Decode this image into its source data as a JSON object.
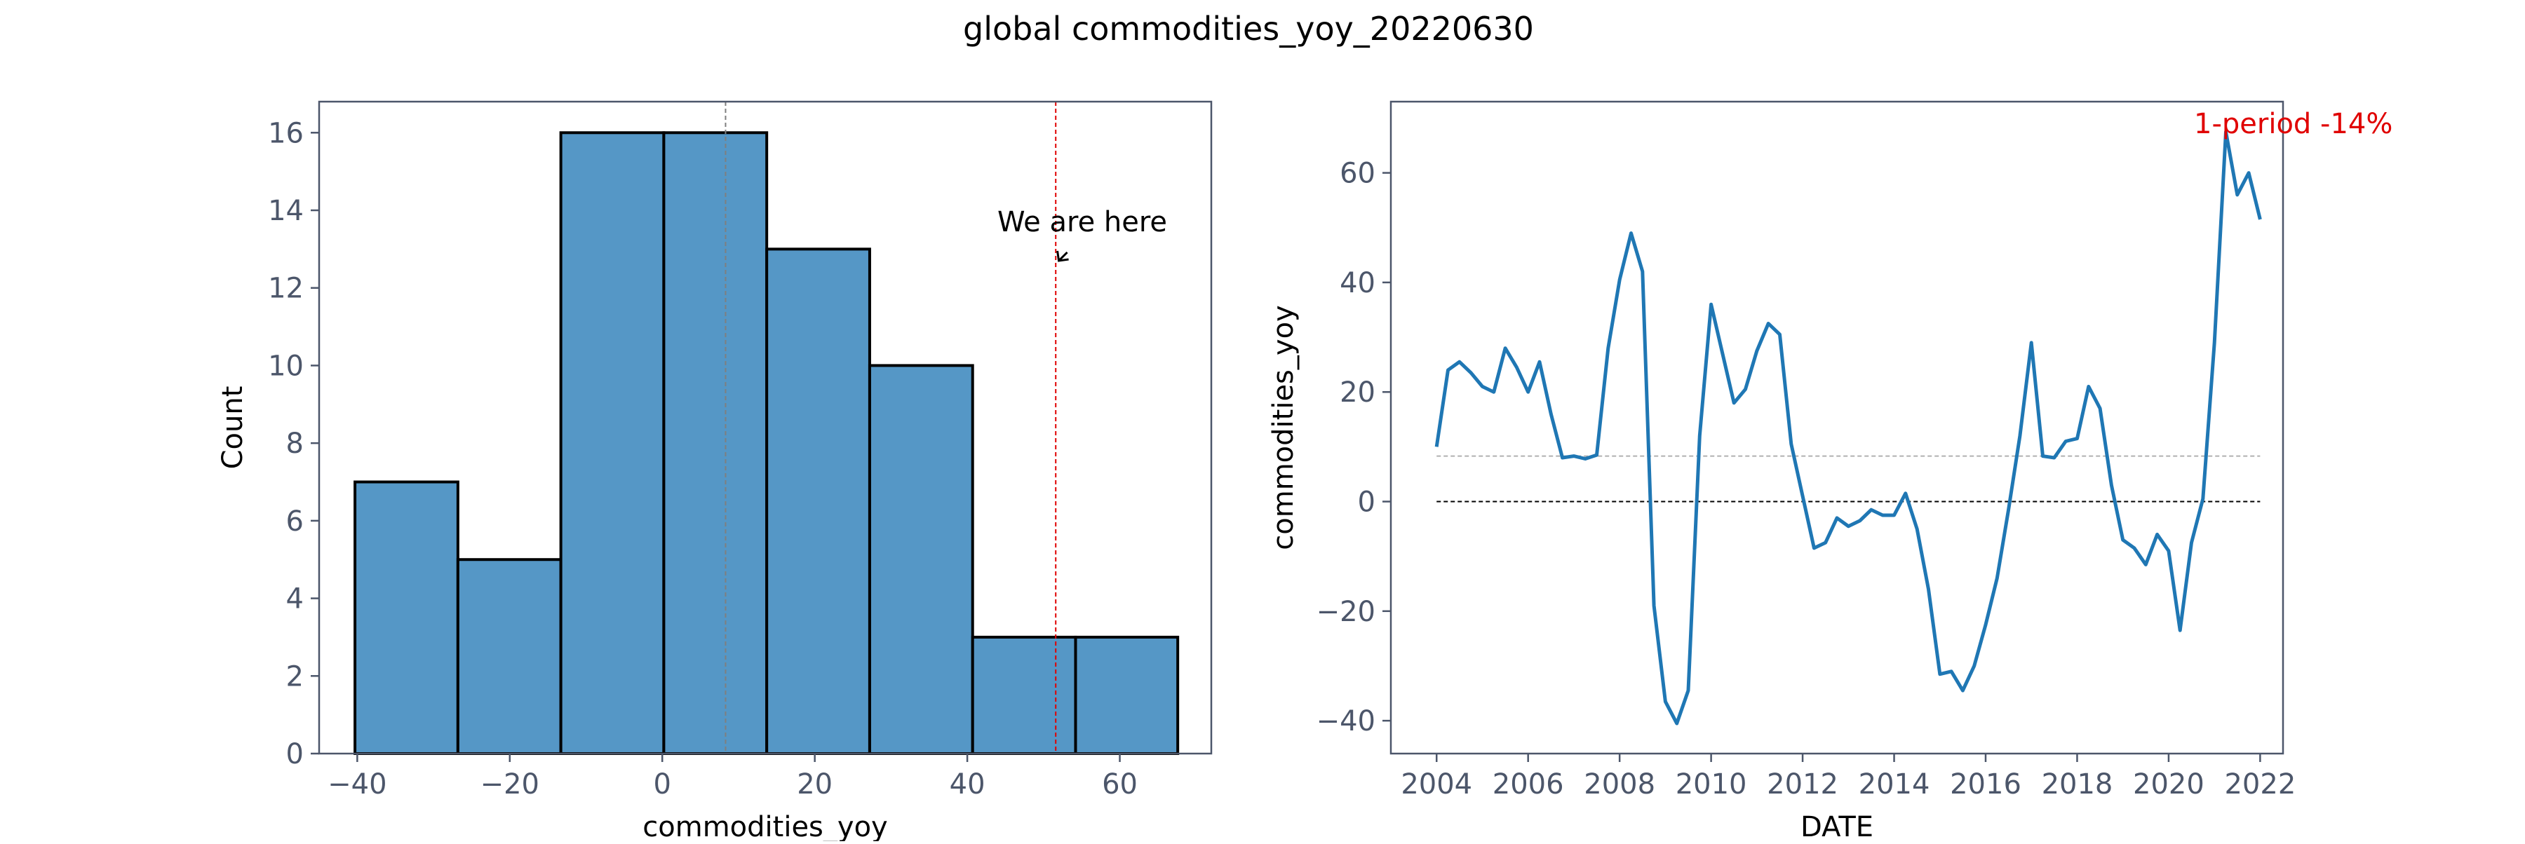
{
  "figure": {
    "title": "global commodities_yoy_20220630"
  },
  "colors": {
    "bar_fill": "#5597c6",
    "line": "#1f77b4",
    "marker": "#d62728",
    "axis": "#4c566a",
    "text": "#000000"
  },
  "chart_data": [
    {
      "type": "bar",
      "subtype": "histogram",
      "xlabel": "commodities_yoy",
      "ylabel": "Count",
      "bins": [
        {
          "start": -40.3,
          "end": -26.8,
          "count": 7
        },
        {
          "start": -26.8,
          "end": -13.3,
          "count": 5
        },
        {
          "start": -13.3,
          "end": 0.2,
          "count": 16
        },
        {
          "start": 0.2,
          "end": 13.7,
          "count": 16
        },
        {
          "start": 13.7,
          "end": 27.2,
          "count": 13
        },
        {
          "start": 27.2,
          "end": 40.7,
          "count": 10
        },
        {
          "start": 40.7,
          "end": 54.2,
          "count": 3
        },
        {
          "start": 54.2,
          "end": 67.6,
          "count": 3
        }
      ],
      "xlim": [
        -45,
        72
      ],
      "ylim": [
        0,
        16.8
      ],
      "xticks": [
        -40,
        -20,
        0,
        20,
        40,
        60
      ],
      "xtick_labels": [
        "−40",
        "−20",
        "0",
        "20",
        "40",
        "60"
      ],
      "yticks": [
        0,
        2,
        4,
        6,
        8,
        10,
        12,
        14,
        16
      ],
      "ytick_labels": [
        "0",
        "2",
        "4",
        "6",
        "8",
        "10",
        "12",
        "14",
        "16"
      ],
      "mean_line": 8.3,
      "current_line": 51.6,
      "annotation": {
        "text": "We are here",
        "x": 52,
        "y": 12.7
      },
      "grid": false
    },
    {
      "type": "line",
      "xlabel": "DATE",
      "ylabel": "commodities_yoy",
      "xlim": [
        2003.0,
        2022.5
      ],
      "ylim": [
        -46,
        73
      ],
      "xticks": [
        2004,
        2006,
        2008,
        2010,
        2012,
        2014,
        2016,
        2018,
        2020,
        2022
      ],
      "xtick_labels": [
        "2004",
        "2006",
        "2008",
        "2010",
        "2012",
        "2014",
        "2016",
        "2018",
        "2020",
        "2022"
      ],
      "yticks": [
        -40,
        -20,
        0,
        20,
        40,
        60
      ],
      "ytick_labels": [
        "−40",
        "−20",
        "0",
        "20",
        "40",
        "60"
      ],
      "mean_line": 8.3,
      "zero_line": 0,
      "annotation": {
        "text": "1-period -14%"
      },
      "grid": false,
      "series": [
        {
          "x": [
            2004.0,
            2004.25,
            2004.5,
            2004.75,
            2005.0,
            2005.25,
            2005.5,
            2005.75,
            2006.0,
            2006.25,
            2006.5,
            2006.75,
            2007.0,
            2007.25,
            2007.5,
            2007.75,
            2008.0,
            2008.25,
            2008.5,
            2008.75,
            2009.0,
            2009.25,
            2009.5,
            2009.75,
            2010.0,
            2010.25,
            2010.5,
            2010.75,
            2011.0,
            2011.25,
            2011.5,
            2011.75,
            2012.0,
            2012.25,
            2012.5,
            2012.75,
            2013.0,
            2013.25,
            2013.5,
            2013.75,
            2014.0,
            2014.25,
            2014.5,
            2014.75,
            2015.0,
            2015.25,
            2015.5,
            2015.75,
            2016.0,
            2016.25,
            2016.5,
            2016.75,
            2017.0,
            2017.25,
            2017.5,
            2017.75,
            2018.0,
            2018.25,
            2018.5,
            2018.75,
            2019.0,
            2019.25,
            2019.5,
            2019.75,
            2020.0,
            2020.25,
            2020.5,
            2020.75,
            2021.0,
            2021.25,
            2021.5,
            2021.75,
            2022.0
          ],
          "y": [
            10,
            24,
            25.5,
            23.5,
            21,
            20,
            28,
            24.5,
            20,
            25.5,
            16,
            8,
            8.3,
            7.8,
            8.5,
            28,
            40.5,
            49,
            42,
            -19,
            -36.5,
            -40.5,
            -34.5,
            12,
            36,
            27,
            18,
            20.5,
            27.5,
            32.5,
            30.5,
            10.5,
            1,
            -8.5,
            -7.5,
            -3,
            -4.5,
            -3.5,
            -1.5,
            -2.5,
            -2.5,
            1.5,
            -5,
            -16,
            -31.5,
            -31,
            -34.5,
            -30,
            -22.5,
            -14,
            -1.5,
            12,
            29,
            8.3,
            8,
            11,
            11.5,
            21,
            17,
            3,
            -7,
            -8.5,
            -11.5,
            -6,
            -9,
            -23.5,
            -7.5,
            0.5,
            29,
            67.5,
            56,
            60,
            51.5
          ]
        }
      ]
    }
  ]
}
